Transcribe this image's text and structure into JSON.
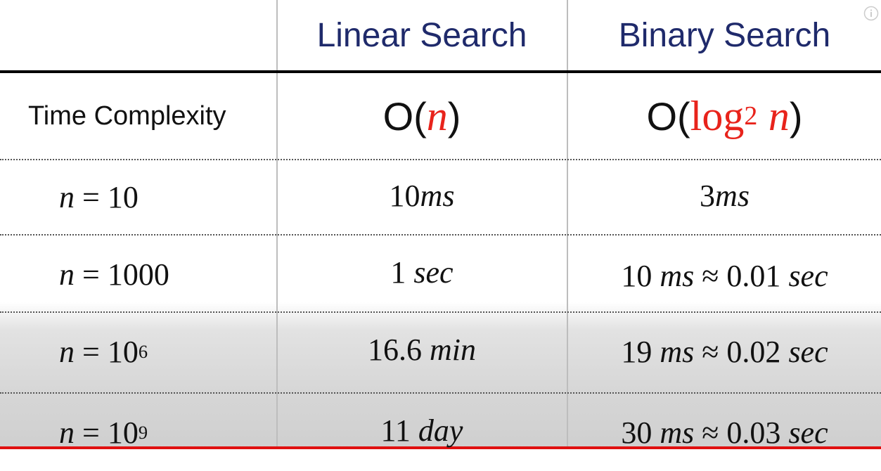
{
  "table": {
    "header": [
      "Linear Search",
      "Binary Search"
    ],
    "rows": [
      [
        [
          "Time Complexity"
        ],
        [
          "O(",
          "n",
          ")"
        ],
        [
          "O(",
          "log",
          "2",
          " ",
          "n",
          ")"
        ]
      ],
      [
        [
          "n",
          " = 10"
        ],
        [
          "10",
          "ms"
        ],
        [
          "3",
          "ms"
        ]
      ],
      [
        [
          "n",
          " = 1000"
        ],
        [
          "1 ",
          "sec"
        ],
        [
          "10 ",
          "ms",
          " ≈ 0.01 ",
          "sec"
        ]
      ],
      [
        [
          "n",
          " = 10",
          "6"
        ],
        [
          "16.6 ",
          "min"
        ],
        [
          "19 ",
          "ms",
          " ≈ 0.02 ",
          "sec"
        ]
      ],
      [
        [
          "n",
          " = 10",
          "9"
        ],
        [
          "11 ",
          "day"
        ],
        [
          "30 ",
          "ms",
          " ≈ 0.03 ",
          "sec"
        ]
      ]
    ]
  }
}
